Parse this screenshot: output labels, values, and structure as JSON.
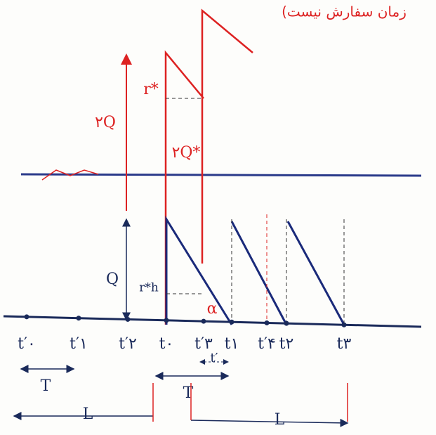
{
  "header": {
    "note": "(زمان سفارش نیست"
  },
  "labels": {
    "two_q": "۲Q",
    "r_star": "r*",
    "two_q_star": "۲Q*",
    "q": "Q",
    "r_star_h": "r*h",
    "alpha": "α"
  },
  "axis": {
    "ticks": [
      "t′۰",
      "t′۱",
      "t′۲",
      "t۰",
      "t′۳",
      "t۱",
      "t′۴",
      "t۲",
      "t۳"
    ]
  },
  "spans": {
    "t_prime": "t′",
    "t_left": "T",
    "t_mid": "T",
    "l_left": "L",
    "l_right": "L"
  }
}
